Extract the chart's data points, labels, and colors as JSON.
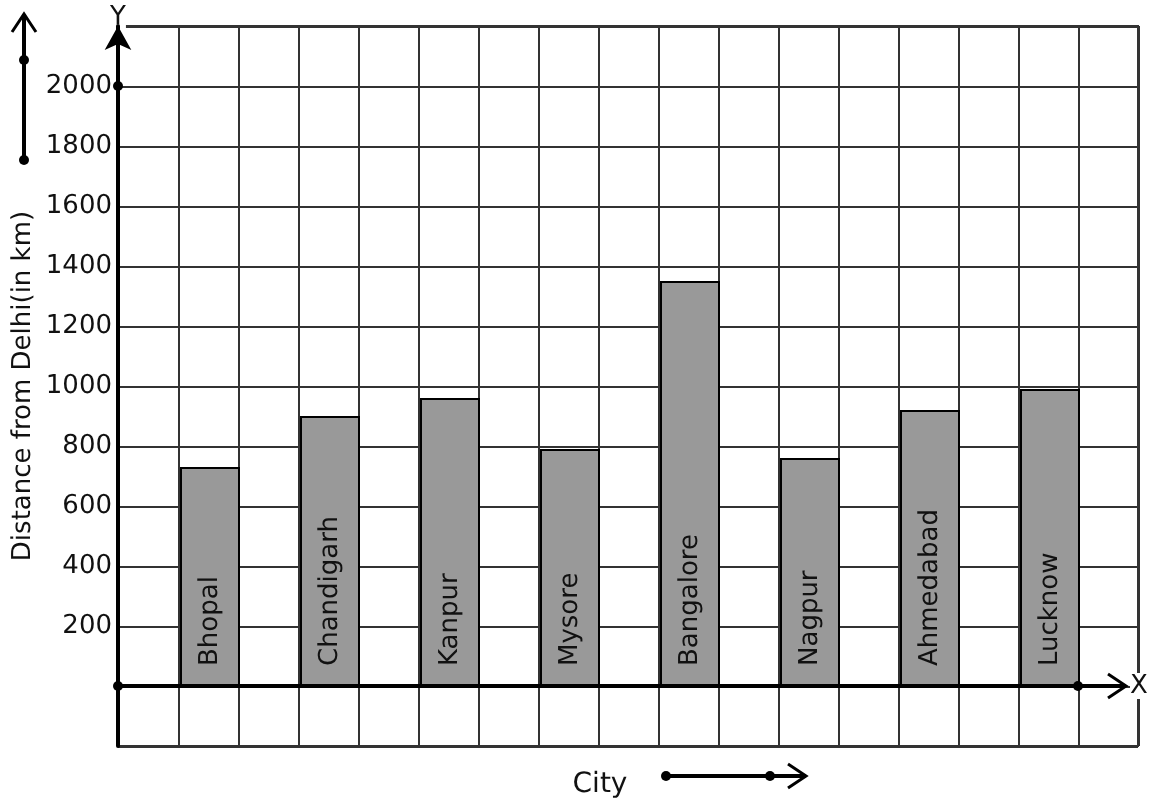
{
  "chart_data": {
    "type": "bar",
    "xlabel": "City",
    "ylabel": "Distance from Delhi(in km)",
    "categories": [
      "Bhopal",
      "Chandigarh",
      "Kanpur",
      "Mysore",
      "Bangalore",
      "Nagpur",
      "Ahmedabad",
      "Lucknow"
    ],
    "values": [
      730,
      900,
      960,
      790,
      1350,
      760,
      920,
      990
    ],
    "color": "#999999",
    "ylim": [
      -200,
      2200
    ],
    "yticks": [
      {
        "value": -200,
        "label": null
      },
      {
        "value": 0,
        "label": null
      },
      200,
      400,
      600,
      800,
      1000,
      1200,
      1400,
      1600,
      1800,
      2000,
      {
        "value": 2200,
        "label": null
      }
    ],
    "grid": true,
    "annotations": [
      "Y",
      "X"
    ]
  }
}
